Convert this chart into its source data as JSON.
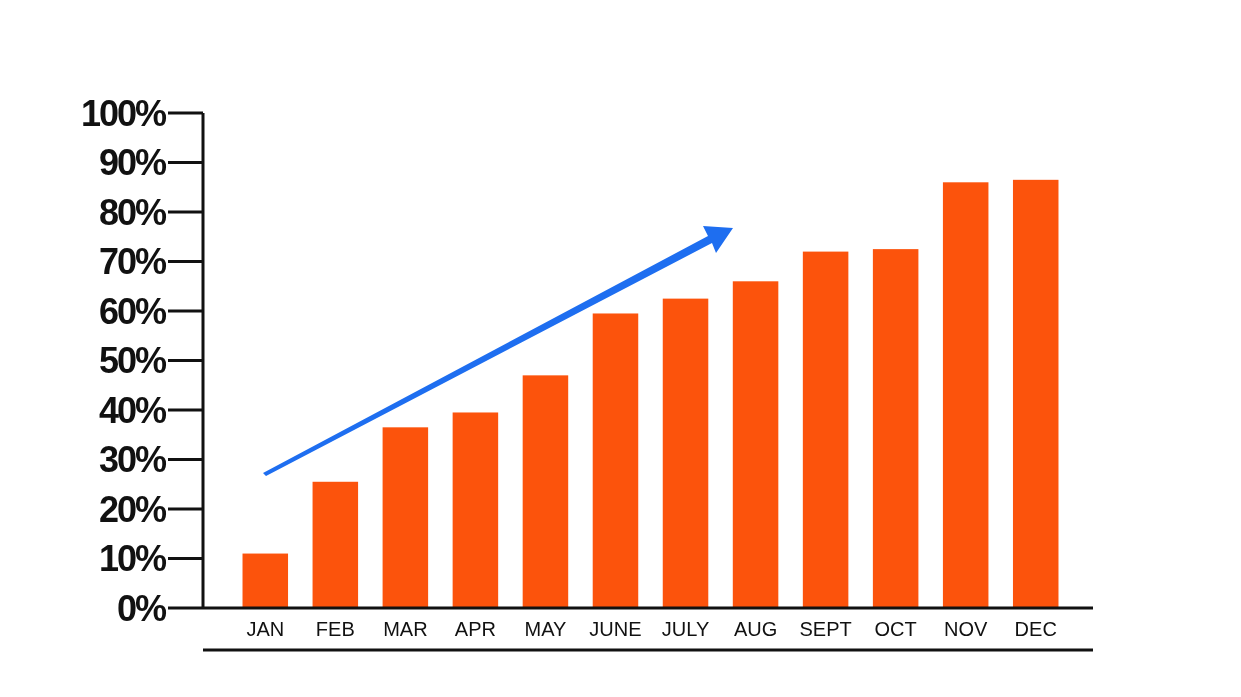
{
  "chart_data": {
    "type": "bar",
    "categories": [
      "JAN",
      "FEB",
      "MAR",
      "APR",
      "MAY",
      "JUNE",
      "JULY",
      "AUG",
      "SEPT",
      "OCT",
      "NOV",
      "DEC"
    ],
    "values": [
      11,
      25.5,
      36.5,
      39.5,
      47,
      59.5,
      62.5,
      66,
      72,
      72.5,
      86,
      86.5
    ],
    "color": "#fc530c",
    "ylim": [
      0,
      100
    ],
    "yticks": [
      {
        "value": 0,
        "label": "0%"
      },
      {
        "value": 10,
        "label": "10%"
      },
      {
        "value": 20,
        "label": "20%"
      },
      {
        "value": 30,
        "label": "30%"
      },
      {
        "value": 40,
        "label": "40%"
      },
      {
        "value": 50,
        "label": "50%"
      },
      {
        "value": 60,
        "label": "60%"
      },
      {
        "value": 70,
        "label": "70%"
      },
      {
        "value": 80,
        "label": "80%"
      },
      {
        "value": 90,
        "label": "90%"
      },
      {
        "value": 100,
        "label": "100%"
      }
    ],
    "grid": false
  }
}
